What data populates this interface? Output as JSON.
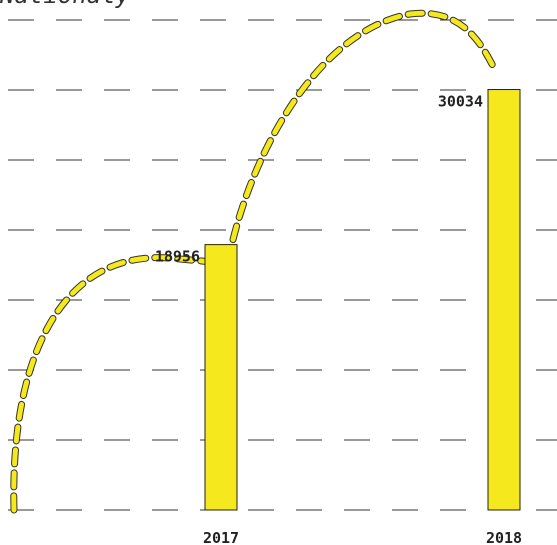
{
  "chart_data": {
    "type": "bar",
    "title": "Nationaly",
    "categories": [
      "2017",
      "2018"
    ],
    "values": [
      18956,
      30034
    ],
    "color": "#f5e81c",
    "ylim": [
      0,
      35000
    ],
    "yticks": [
      0,
      5000,
      10000,
      15000,
      20000,
      25000,
      30000,
      35000
    ],
    "grid": true
  }
}
